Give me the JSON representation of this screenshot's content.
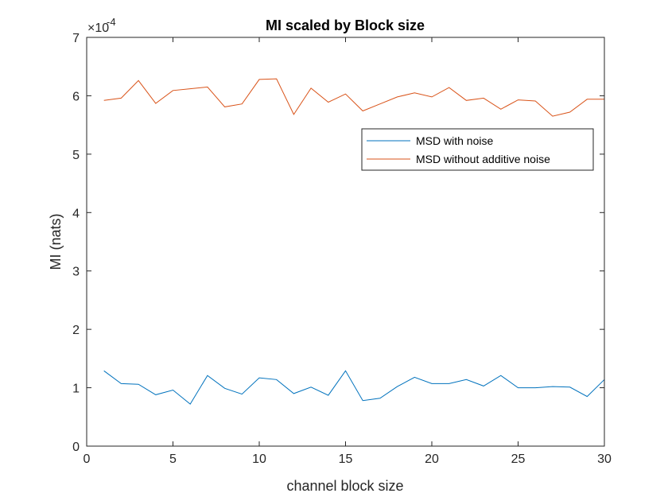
{
  "chart_data": {
    "type": "line",
    "title": "MI scaled by Block size",
    "xlabel": "channel block size",
    "ylabel": "MI (nats)",
    "y_exponent": "-4",
    "y_exponent_prefix": "×10",
    "xlim": [
      0,
      30
    ],
    "ylim": [
      0,
      7
    ],
    "xticks": [
      0,
      5,
      10,
      15,
      20,
      25,
      30
    ],
    "yticks": [
      0,
      1,
      2,
      3,
      4,
      5,
      6,
      7
    ],
    "grid": false,
    "legend_position": "upper-right-inside",
    "x": [
      1,
      2,
      3,
      4,
      5,
      6,
      7,
      8,
      9,
      10,
      11,
      12,
      13,
      14,
      15,
      16,
      17,
      18,
      19,
      20,
      21,
      22,
      23,
      24,
      25,
      26,
      27,
      28,
      29,
      30
    ],
    "series": [
      {
        "name": "MSD with noise",
        "color": "#0072BD",
        "values": [
          1.29,
          1.07,
          1.06,
          0.88,
          0.96,
          0.72,
          1.21,
          0.99,
          0.89,
          1.17,
          1.14,
          0.9,
          1.01,
          0.87,
          1.29,
          0.78,
          0.82,
          1.02,
          1.18,
          1.07,
          1.07,
          1.14,
          1.03,
          1.21,
          1.0,
          1.0,
          1.02,
          1.01,
          0.85,
          1.14
        ]
      },
      {
        "name": "MSD without additive noise",
        "color": "#D95319",
        "values": [
          5.92,
          5.96,
          6.26,
          5.87,
          6.09,
          6.12,
          6.15,
          5.81,
          5.86,
          6.28,
          6.29,
          5.68,
          6.13,
          5.89,
          6.03,
          5.74,
          5.86,
          5.98,
          6.05,
          5.98,
          6.14,
          5.92,
          5.96,
          5.77,
          5.93,
          5.91,
          5.65,
          5.72,
          5.94,
          5.94
        ]
      }
    ]
  }
}
